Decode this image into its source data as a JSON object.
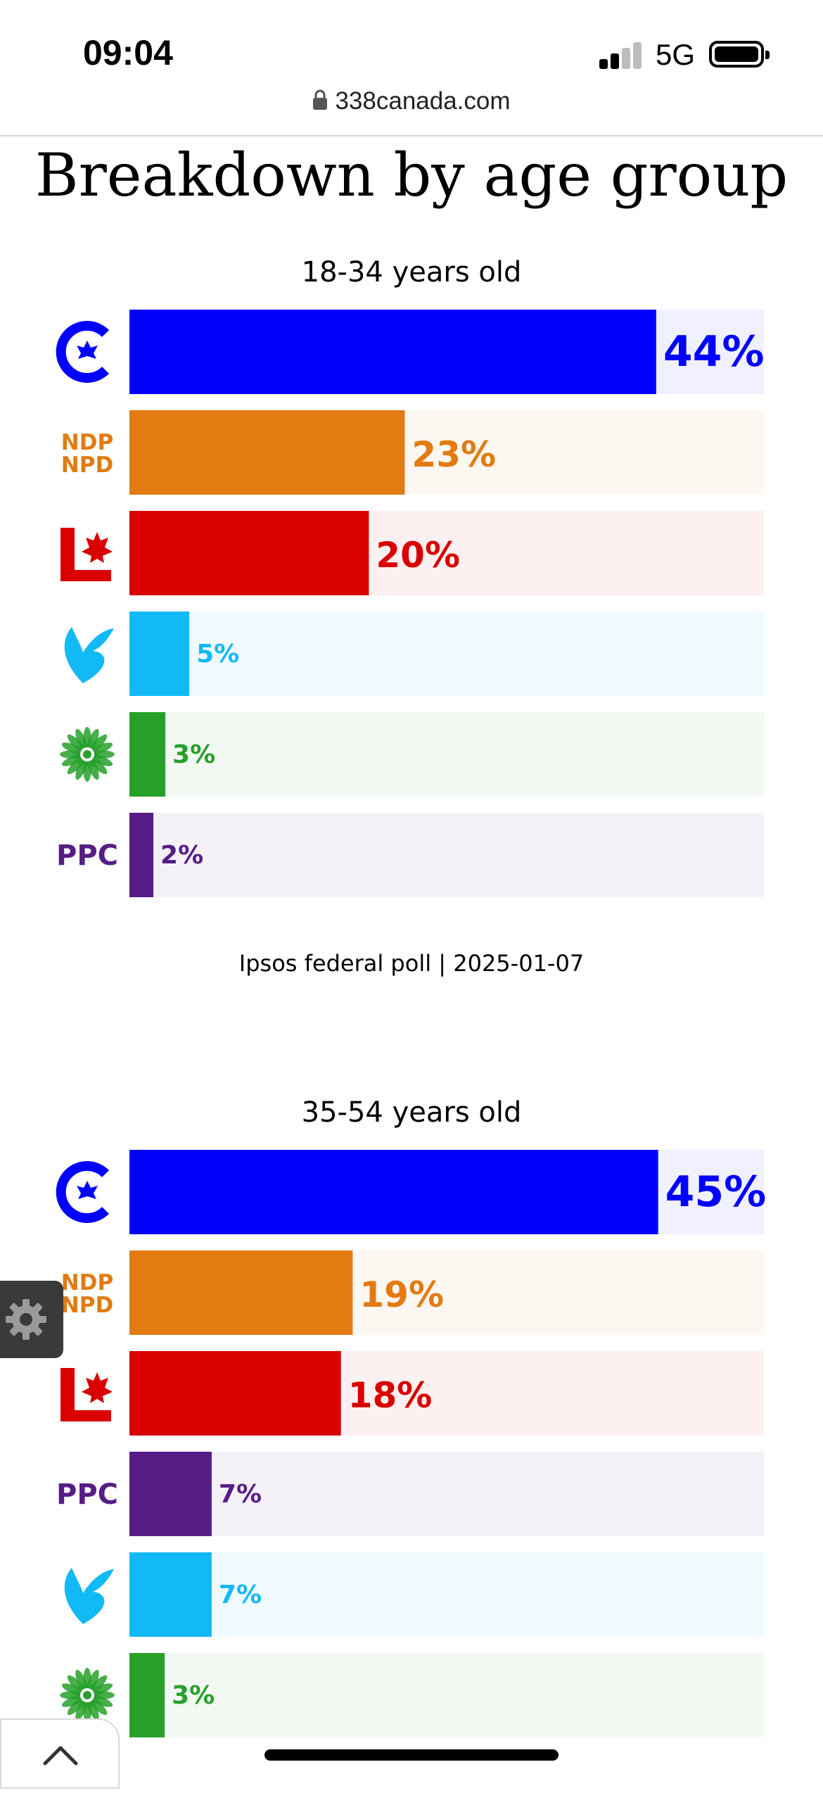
{
  "status_bar": {
    "time": "09:04",
    "network": "5G"
  },
  "browser": {
    "url": "338canada.com"
  },
  "page": {
    "title": "Breakdown by age group",
    "source": "Ipsos federal poll | 2025-01-07"
  },
  "party_colors": {
    "CPC": "#0000ff",
    "NDP": "#e27b11",
    "LPC": "#d90000",
    "BQ": "#12b9f7",
    "GPC": "#27a02a",
    "PPC": "#561d87"
  },
  "party_icons": {
    "CPC": "cpc-logo-icon",
    "NDP": "ndp-logo-icon",
    "LPC": "lpc-logo-icon",
    "BQ": "bq-logo-icon",
    "GPC": "gpc-logo-icon",
    "PPC": "ppc-logo-icon"
  },
  "chart_data": [
    {
      "type": "bar",
      "orientation": "horizontal",
      "title": "18-34 years old",
      "categories": [
        "CPC",
        "NDP",
        "LPC",
        "BQ",
        "GPC",
        "PPC"
      ],
      "values": [
        44,
        23,
        20,
        5,
        3,
        2
      ],
      "labels": [
        "44%",
        "23%",
        "20%",
        "5%",
        "3%",
        "2%"
      ],
      "xlim": [
        0,
        53
      ]
    },
    {
      "type": "bar",
      "orientation": "horizontal",
      "title": "35-54 years old",
      "categories": [
        "CPC",
        "NDP",
        "LPC",
        "PPC",
        "BQ",
        "GPC"
      ],
      "values": [
        45,
        19,
        18,
        7,
        7,
        3
      ],
      "labels": [
        "45%",
        "19%",
        "18%",
        "7%",
        "7%",
        "3%"
      ],
      "xlim": [
        0,
        54
      ]
    }
  ]
}
